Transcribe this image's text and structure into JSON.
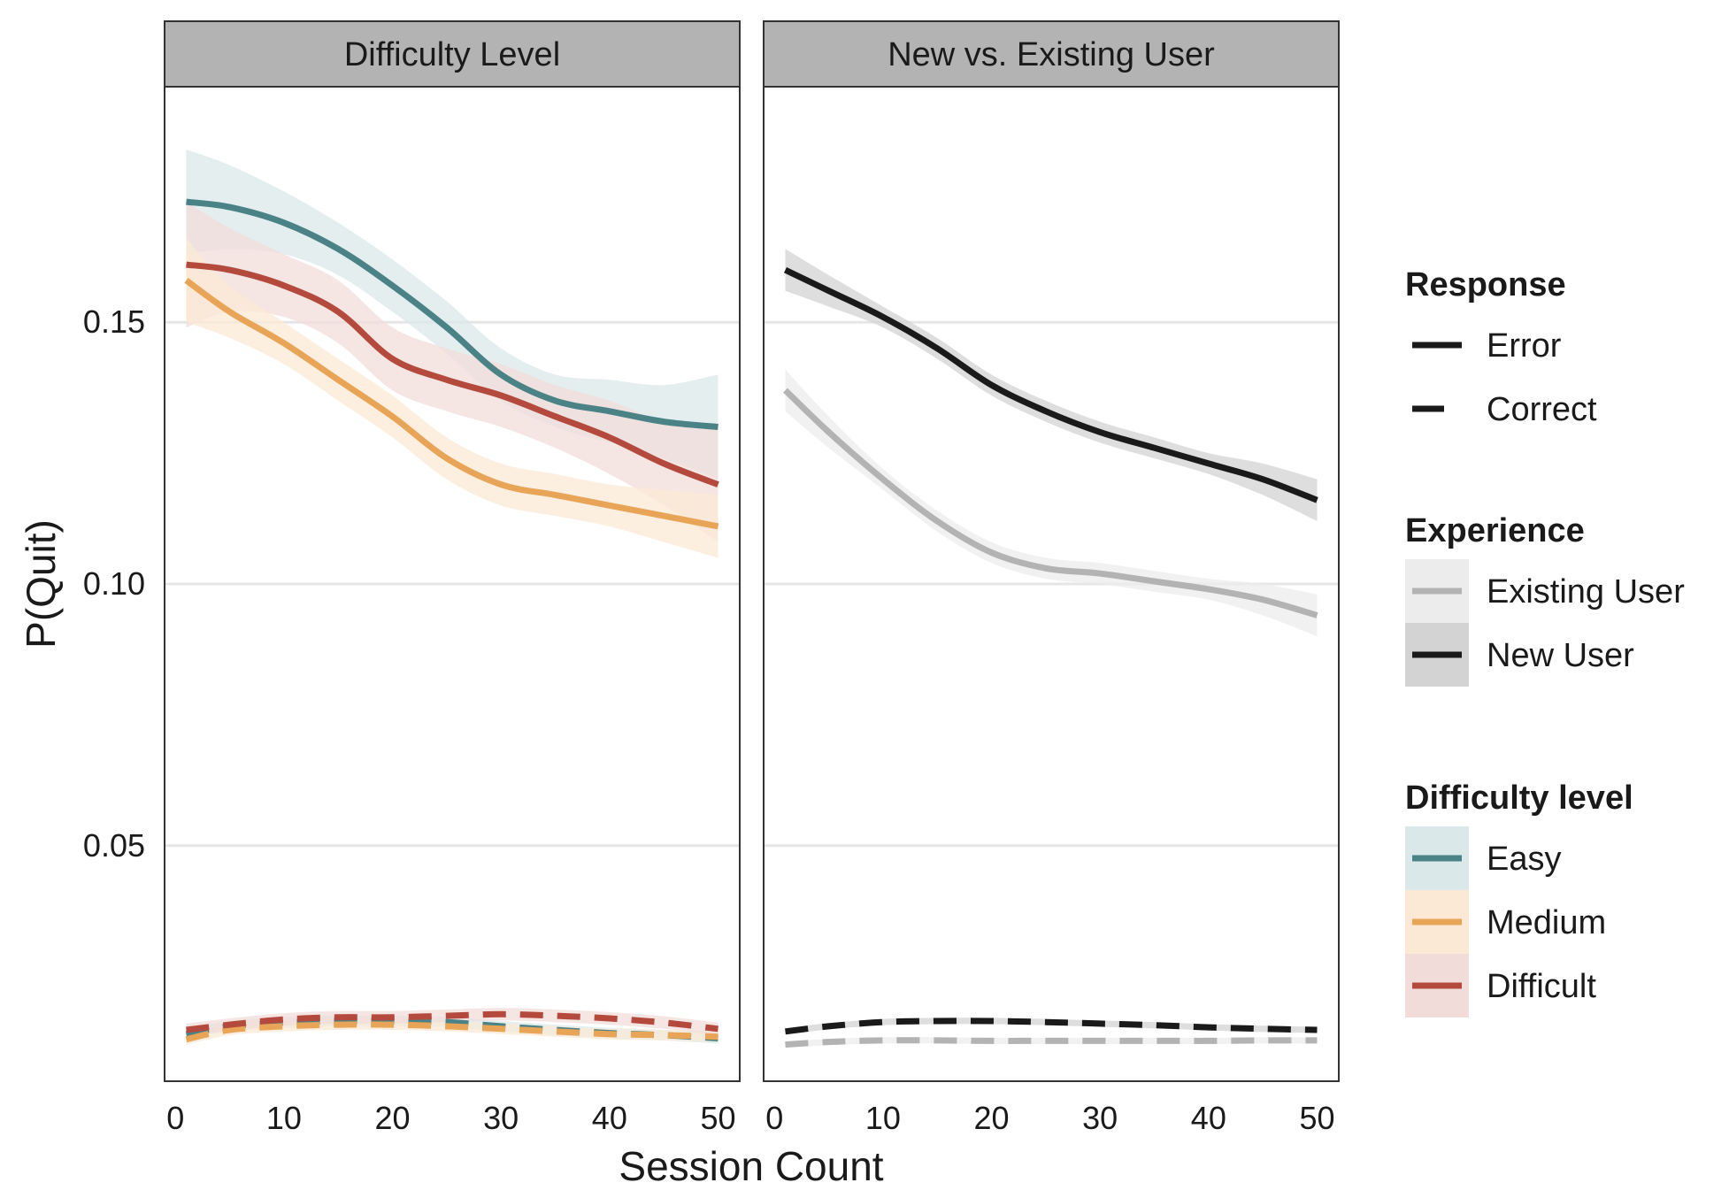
{
  "chart_data": {
    "type": "line",
    "ylabel": "P(Quit)",
    "xlabel": "Session Count",
    "xlim": [
      -1,
      52
    ],
    "ylim": [
      0.005,
      0.195
    ],
    "x_ticks": [
      0,
      10,
      20,
      30,
      40,
      50
    ],
    "y_ticks": [
      0.05,
      0.1,
      0.15
    ],
    "y_tick_labels": [
      "0.05",
      "0.10",
      "0.15"
    ],
    "grid": "horizontal major only",
    "x": [
      1,
      5,
      10,
      15,
      20,
      25,
      30,
      35,
      40,
      45,
      50
    ],
    "panels": [
      {
        "title": "Difficulty Level",
        "series": [
          {
            "name": "Easy",
            "response": "Error",
            "color": "#4a8286",
            "band": "#dbe8e9",
            "values": [
              0.173,
              0.172,
              0.169,
              0.164,
              0.157,
              0.149,
              0.14,
              0.135,
              0.133,
              0.131,
              0.13
            ],
            "ci": [
              0.01,
              0.008,
              0.006,
              0.005,
              0.005,
              0.005,
              0.005,
              0.005,
              0.006,
              0.007,
              0.01
            ]
          },
          {
            "name": "Difficult",
            "response": "Error",
            "color": "#b34a3d",
            "band": "#f2dcda",
            "values": [
              0.161,
              0.16,
              0.157,
              0.152,
              0.143,
              0.139,
              0.136,
              0.132,
              0.128,
              0.123,
              0.119
            ],
            "ci": [
              0.012,
              0.008,
              0.006,
              0.006,
              0.006,
              0.006,
              0.006,
              0.006,
              0.007,
              0.008,
              0.011
            ]
          },
          {
            "name": "Medium",
            "response": "Error",
            "color": "#e8a557",
            "band": "#fbe9d6",
            "values": [
              0.158,
              0.152,
              0.146,
              0.139,
              0.132,
              0.124,
              0.119,
              0.117,
              0.115,
              0.113,
              0.111
            ],
            "ci": [
              0.008,
              0.005,
              0.004,
              0.004,
              0.004,
              0.004,
              0.004,
              0.004,
              0.004,
              0.005,
              0.006
            ]
          },
          {
            "name": "Easy",
            "response": "Correct",
            "color": "#4a8286",
            "band": "#dbe8e9",
            "values": [
              0.014,
              0.0155,
              0.0162,
              0.0165,
              0.0165,
              0.0163,
              0.0155,
              0.0148,
              0.0142,
              0.0138,
              0.0132
            ],
            "ci": [
              0.001,
              0.001,
              0.001,
              0.001,
              0.001,
              0.001,
              0.001,
              0.001,
              0.001,
              0.001,
              0.001
            ]
          },
          {
            "name": "Medium",
            "response": "Correct",
            "color": "#e8a557",
            "band": "#fbe9d6",
            "values": [
              0.013,
              0.0148,
              0.0155,
              0.0158,
              0.0158,
              0.0155,
              0.015,
              0.0145,
              0.014,
              0.0138,
              0.0135
            ],
            "ci": [
              0.001,
              0.001,
              0.001,
              0.001,
              0.001,
              0.001,
              0.001,
              0.001,
              0.001,
              0.001,
              0.001
            ]
          },
          {
            "name": "Difficult",
            "response": "Correct",
            "color": "#b34a3d",
            "band": "#f2dcda",
            "values": [
              0.0148,
              0.0158,
              0.0168,
              0.0172,
              0.0172,
              0.0175,
              0.0178,
              0.0175,
              0.017,
              0.0162,
              0.015
            ],
            "ci": [
              0.0012,
              0.0012,
              0.0012,
              0.0012,
              0.0012,
              0.0012,
              0.0012,
              0.0012,
              0.0012,
              0.0012,
              0.0012
            ]
          }
        ]
      },
      {
        "title": "New vs. Existing User",
        "series": [
          {
            "name": "New User",
            "response": "Error",
            "color": "#1a1a1a",
            "band": "#d3d3d3",
            "values": [
              0.16,
              0.156,
              0.151,
              0.145,
              0.138,
              0.133,
              0.129,
              0.126,
              0.123,
              0.12,
              0.116
            ],
            "ci": [
              0.004,
              0.003,
              0.002,
              0.002,
              0.002,
              0.002,
              0.002,
              0.002,
              0.002,
              0.003,
              0.004
            ]
          },
          {
            "name": "Existing User",
            "response": "Error",
            "color": "#b3b3b3",
            "band": "#ececec",
            "values": [
              0.137,
              0.129,
              0.12,
              0.112,
              0.106,
              0.103,
              0.102,
              0.1005,
              0.099,
              0.097,
              0.094
            ],
            "ci": [
              0.004,
              0.003,
              0.002,
              0.002,
              0.002,
              0.002,
              0.002,
              0.002,
              0.002,
              0.003,
              0.004
            ]
          },
          {
            "name": "New User",
            "response": "Correct",
            "color": "#1a1a1a",
            "band": "#d3d3d3",
            "values": [
              0.0145,
              0.0155,
              0.0163,
              0.0165,
              0.0165,
              0.0163,
              0.016,
              0.0157,
              0.0153,
              0.015,
              0.0148
            ],
            "ci": [
              0.0006,
              0.0006,
              0.0006,
              0.0006,
              0.0006,
              0.0006,
              0.0006,
              0.0006,
              0.0006,
              0.0006,
              0.0006
            ]
          },
          {
            "name": "Existing User",
            "response": "Correct",
            "color": "#b3b3b3",
            "band": "#ececec",
            "values": [
              0.012,
              0.0125,
              0.0128,
              0.0128,
              0.0127,
              0.0127,
              0.0127,
              0.0127,
              0.0127,
              0.0128,
              0.0128
            ],
            "ci": [
              0.0006,
              0.0006,
              0.0006,
              0.0006,
              0.0006,
              0.0006,
              0.0006,
              0.0006,
              0.0006,
              0.0006,
              0.0006
            ]
          }
        ]
      }
    ],
    "legend": {
      "placement": "right",
      "groups": [
        {
          "title": "Response",
          "items": [
            {
              "label": "Error",
              "linetype": "solid",
              "color": "#1a1a1a"
            },
            {
              "label": "Correct",
              "linetype": "dashed",
              "color": "#1a1a1a"
            }
          ]
        },
        {
          "title": "Experience",
          "items": [
            {
              "label": "Existing User",
              "color": "#b3b3b3",
              "band": "#ececec"
            },
            {
              "label": "New User",
              "color": "#1a1a1a",
              "band": "#d3d3d3"
            }
          ]
        },
        {
          "title": "Difficulty level",
          "items": [
            {
              "label": "Easy",
              "color": "#4a8286",
              "band": "#dbe8e9"
            },
            {
              "label": "Medium",
              "color": "#e8a557",
              "band": "#fbe9d6"
            },
            {
              "label": "Difficult",
              "color": "#b34a3d",
              "band": "#f2dcda"
            }
          ]
        }
      ]
    }
  }
}
